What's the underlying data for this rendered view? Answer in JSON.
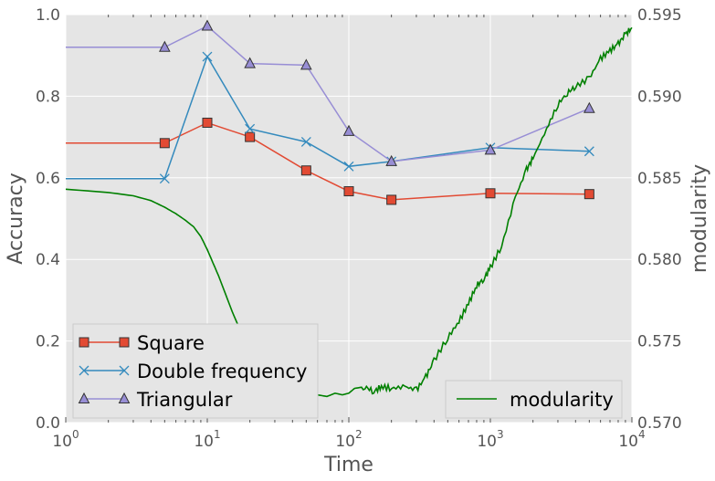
{
  "chart_data": {
    "type": "line",
    "xlabel": "Time",
    "ylabel": "Accuracy",
    "y2label": "modularity",
    "xscale": "log",
    "xlim": [
      1,
      10000
    ],
    "ylim": [
      0.0,
      1.0
    ],
    "y2lim": [
      0.57,
      0.595
    ],
    "grid": true,
    "x_ticks": [
      {
        "base": "10",
        "exp": "0",
        "value": 1
      },
      {
        "base": "10",
        "exp": "1",
        "value": 10
      },
      {
        "base": "10",
        "exp": "2",
        "value": 100
      },
      {
        "base": "10",
        "exp": "3",
        "value": 1000
      },
      {
        "base": "10",
        "exp": "4",
        "value": 10000
      }
    ],
    "y_ticks": [
      "0.0",
      "0.2",
      "0.4",
      "0.6",
      "0.8",
      "1.0"
    ],
    "y2_ticks": [
      "0.570",
      "0.575",
      "0.580",
      "0.585",
      "0.590",
      "0.595"
    ],
    "legend_left": {
      "placement": "lower-left",
      "entries": [
        "Square",
        "Double frequency",
        "Triangular"
      ]
    },
    "legend_right": {
      "placement": "lower-right",
      "entries": [
        "modularity"
      ]
    },
    "series": [
      {
        "name": "Square",
        "axis": "left",
        "color": "#e24a33",
        "marker": "square",
        "x": [
          1,
          5,
          10,
          20,
          50,
          100,
          200,
          1000,
          5000
        ],
        "y": [
          0.685,
          0.685,
          0.735,
          0.7,
          0.618,
          0.567,
          0.546,
          0.562,
          0.56
        ]
      },
      {
        "name": "Double frequency",
        "axis": "left",
        "color": "#348abd",
        "marker": "x",
        "x": [
          1,
          5,
          10,
          20,
          50,
          100,
          200,
          1000,
          5000
        ],
        "y": [
          0.598,
          0.598,
          0.897,
          0.72,
          0.688,
          0.628,
          0.64,
          0.674,
          0.665
        ]
      },
      {
        "name": "Triangular",
        "axis": "left",
        "color": "#988ed5",
        "marker": "triangle",
        "x": [
          1,
          5,
          10,
          20,
          50,
          100,
          200,
          1000,
          5000
        ],
        "y": [
          0.92,
          0.92,
          0.972,
          0.88,
          0.876,
          0.714,
          0.64,
          0.668,
          0.77
        ]
      },
      {
        "name": "modularity",
        "axis": "right",
        "color": "#008000",
        "marker": "none",
        "x": [
          1,
          2,
          3,
          4,
          5,
          6,
          7,
          8,
          9,
          10,
          12,
          15,
          18,
          20,
          25,
          30,
          35,
          40,
          45,
          50,
          60,
          70,
          80,
          90,
          100,
          110,
          130,
          150,
          170,
          200,
          250,
          300,
          350,
          400,
          500,
          600,
          700,
          800,
          900,
          1000,
          1200,
          1500,
          1800,
          2000,
          2500,
          3000,
          3500,
          4000,
          5000,
          6000,
          7000,
          8000,
          9000,
          10000
        ],
        "y": [
          0.5843,
          0.5841,
          0.5839,
          0.5836,
          0.5832,
          0.5828,
          0.5824,
          0.582,
          0.5814,
          0.5806,
          0.579,
          0.5768,
          0.5752,
          0.5745,
          0.5732,
          0.5723,
          0.5718,
          0.5716,
          0.5717,
          0.5716,
          0.5717,
          0.5716,
          0.5718,
          0.5717,
          0.5718,
          0.5721,
          0.5722,
          0.5719,
          0.5722,
          0.5721,
          0.5722,
          0.572,
          0.5728,
          0.5738,
          0.5752,
          0.5762,
          0.5773,
          0.5784,
          0.5788,
          0.5795,
          0.5808,
          0.5838,
          0.5855,
          0.5862,
          0.588,
          0.5895,
          0.5902,
          0.5906,
          0.5911,
          0.5923,
          0.5928,
          0.5932,
          0.5938,
          0.5942
        ]
      }
    ]
  }
}
